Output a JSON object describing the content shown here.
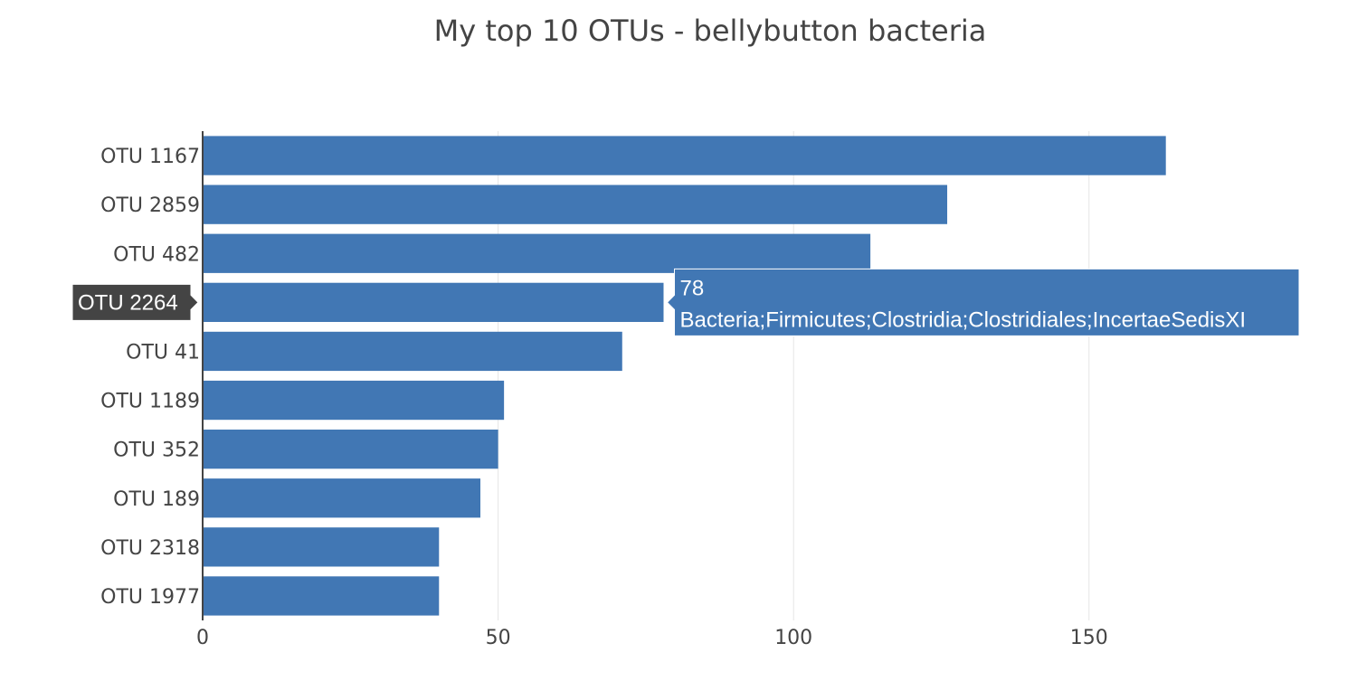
{
  "chart_data": {
    "type": "bar",
    "orientation": "horizontal",
    "title": "My top 10 OTUs - bellybutton bacteria",
    "xlabel": "",
    "ylabel": "",
    "categories": [
      "OTU 1167",
      "OTU 2859",
      "OTU 482",
      "OTU 2264",
      "OTU 41",
      "OTU 1189",
      "OTU 352",
      "OTU 189",
      "OTU 2318",
      "OTU 1977"
    ],
    "values": [
      163,
      126,
      113,
      78,
      71,
      51,
      50,
      47,
      40,
      40
    ],
    "xlim": [
      0,
      188
    ],
    "xticks": [
      0,
      50,
      100,
      150
    ],
    "grid": "vertical",
    "bar_color": "#4177b4",
    "hover": {
      "category": "OTU 2264",
      "value_text": "78",
      "label_text": "Bacteria;Firmicutes;Clostridia;Clostridiales;IncertaeSedisXI",
      "box_color": "#4177b4",
      "axis_label_bg": "#444444"
    }
  }
}
